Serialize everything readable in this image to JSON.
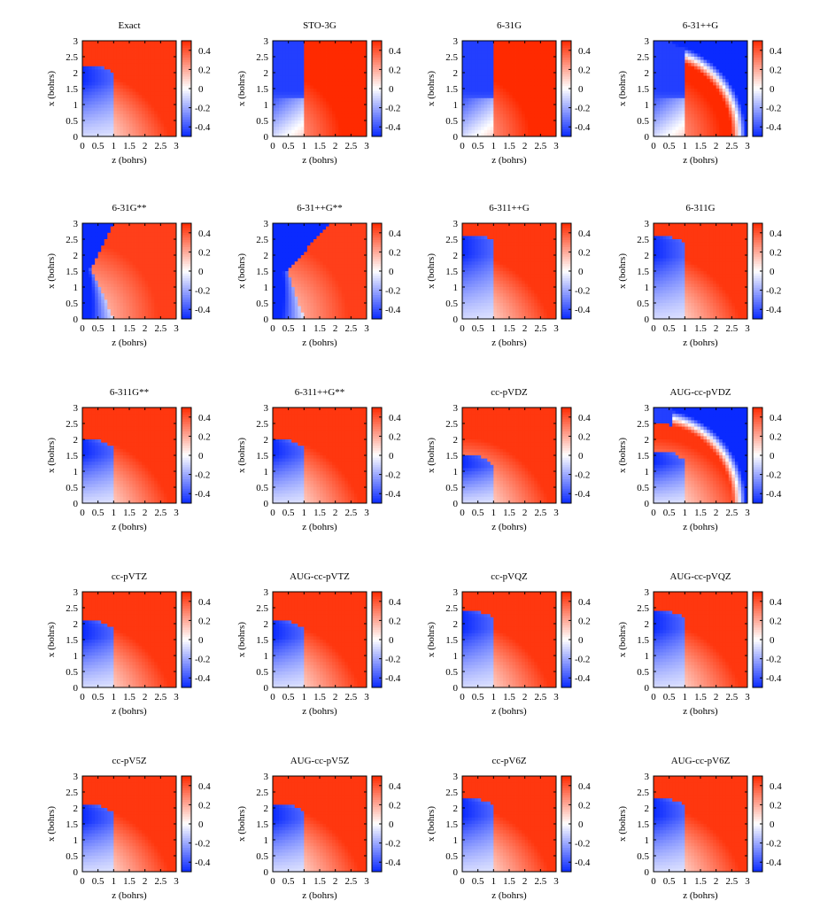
{
  "figure": {
    "xlabel": "z (bohrs)",
    "ylabel": "x (bohrs)",
    "x_ticks": [
      "0",
      "0.5",
      "1",
      "1.5",
      "2",
      "2.5",
      "3"
    ],
    "y_ticks": [
      "0",
      "0.5",
      "1",
      "1.5",
      "2",
      "2.5",
      "3"
    ],
    "colorbar_ticks": [
      "0.4",
      "0.2",
      "0",
      "-0.2",
      "-0.4"
    ],
    "colors": {
      "positive": "#ff2a00",
      "zero": "#ffffff",
      "negative": "#0a2aff"
    }
  },
  "chart_data": [
    {
      "type": "heatmap",
      "title": "Exact",
      "xlim": [
        0,
        3
      ],
      "ylim": [
        0,
        3
      ],
      "clim": [
        -0.5,
        0.5
      ],
      "nodal": "sphere",
      "radius": 2.25
    },
    {
      "type": "heatmap",
      "title": "STO-3G",
      "xlim": [
        0,
        3
      ],
      "ylim": [
        0,
        3
      ],
      "clim": [
        -0.5,
        0.5
      ],
      "nodal": "plane",
      "z0": 1.0
    },
    {
      "type": "heatmap",
      "title": "6-31G",
      "xlim": [
        0,
        3
      ],
      "ylim": [
        0,
        3
      ],
      "clim": [
        -0.5,
        0.5
      ],
      "nodal": "plane",
      "z0": 1.0
    },
    {
      "type": "heatmap",
      "title": "6-31++G",
      "xlim": [
        0,
        3
      ],
      "ylim": [
        0,
        3
      ],
      "clim": [
        -0.5,
        0.5
      ],
      "nodal": "plane",
      "z0": 1.0,
      "outer_node": 2.5
    },
    {
      "type": "heatmap",
      "title": "6-31G**",
      "xlim": [
        0,
        3
      ],
      "ylim": [
        0,
        3
      ],
      "clim": [
        -0.5,
        0.5
      ],
      "nodal": "notch",
      "z0": 1.0,
      "top_z": 1.0,
      "waist": [
        0.3,
        1.55
      ]
    },
    {
      "type": "heatmap",
      "title": "6-31++G**",
      "xlim": [
        0,
        3
      ],
      "ylim": [
        0,
        3
      ],
      "clim": [
        -0.5,
        0.5
      ],
      "nodal": "notch",
      "z0": 1.0,
      "top_z": 1.8,
      "waist": [
        0.5,
        1.5
      ]
    },
    {
      "type": "heatmap",
      "title": "6-311++G",
      "xlim": [
        0,
        3
      ],
      "ylim": [
        0,
        3
      ],
      "clim": [
        -0.5,
        0.5
      ],
      "nodal": "sphere",
      "radius": 2.65
    },
    {
      "type": "heatmap",
      "title": "6-311G",
      "xlim": [
        0,
        3
      ],
      "ylim": [
        0,
        3
      ],
      "clim": [
        -0.5,
        0.5
      ],
      "nodal": "sphere",
      "radius": 2.6
    },
    {
      "type": "heatmap",
      "title": "6-311G**",
      "xlim": [
        0,
        3
      ],
      "ylim": [
        0,
        3
      ],
      "clim": [
        -0.5,
        0.5
      ],
      "nodal": "sphere",
      "radius": 2.0
    },
    {
      "type": "heatmap",
      "title": "6-311++G**",
      "xlim": [
        0,
        3
      ],
      "ylim": [
        0,
        3
      ],
      "clim": [
        -0.5,
        0.5
      ],
      "nodal": "sphere",
      "radius": 2.0
    },
    {
      "type": "heatmap",
      "title": "cc-pVDZ",
      "xlim": [
        0,
        3
      ],
      "ylim": [
        0,
        3
      ],
      "clim": [
        -0.5,
        0.5
      ],
      "nodal": "sphere",
      "radius": 1.55
    },
    {
      "type": "heatmap",
      "title": "AUG-cc-pVDZ",
      "xlim": [
        0,
        3
      ],
      "ylim": [
        0,
        3
      ],
      "clim": [
        -0.5,
        0.5
      ],
      "nodal": "sphere",
      "radius": 1.65,
      "outer_node": 2.5
    },
    {
      "type": "heatmap",
      "title": "cc-pVTZ",
      "xlim": [
        0,
        3
      ],
      "ylim": [
        0,
        3
      ],
      "clim": [
        -0.5,
        0.5
      ],
      "nodal": "sphere",
      "radius": 2.1
    },
    {
      "type": "heatmap",
      "title": "AUG-cc-pVTZ",
      "xlim": [
        0,
        3
      ],
      "ylim": [
        0,
        3
      ],
      "clim": [
        -0.5,
        0.5
      ],
      "nodal": "sphere",
      "radius": 2.1
    },
    {
      "type": "heatmap",
      "title": "cc-pVQZ",
      "xlim": [
        0,
        3
      ],
      "ylim": [
        0,
        3
      ],
      "clim": [
        -0.5,
        0.5
      ],
      "nodal": "sphere",
      "radius": 2.4
    },
    {
      "type": "heatmap",
      "title": "AUG-cc-pVQZ",
      "xlim": [
        0,
        3
      ],
      "ylim": [
        0,
        3
      ],
      "clim": [
        -0.5,
        0.5
      ],
      "nodal": "sphere",
      "radius": 2.4
    },
    {
      "type": "heatmap",
      "title": "cc-pV5Z",
      "xlim": [
        0,
        3
      ],
      "ylim": [
        0,
        3
      ],
      "clim": [
        -0.5,
        0.5
      ],
      "nodal": "sphere",
      "radius": 2.1
    },
    {
      "type": "heatmap",
      "title": "AUG-cc-pV5Z",
      "xlim": [
        0,
        3
      ],
      "ylim": [
        0,
        3
      ],
      "clim": [
        -0.5,
        0.5
      ],
      "nodal": "sphere",
      "radius": 2.15
    },
    {
      "type": "heatmap",
      "title": "cc-pV6Z",
      "xlim": [
        0,
        3
      ],
      "ylim": [
        0,
        3
      ],
      "clim": [
        -0.5,
        0.5
      ],
      "nodal": "sphere",
      "radius": 2.3
    },
    {
      "type": "heatmap",
      "title": "AUG-cc-pV6Z",
      "xlim": [
        0,
        3
      ],
      "ylim": [
        0,
        3
      ],
      "clim": [
        -0.5,
        0.5
      ],
      "nodal": "sphere",
      "radius": 2.3
    }
  ]
}
